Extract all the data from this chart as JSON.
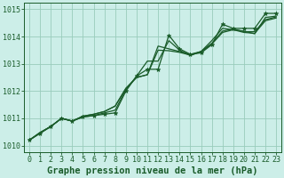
{
  "background_color": "#cceee8",
  "grid_color": "#99ccbb",
  "line_color": "#1a5c2a",
  "title": "Graphe pression niveau de la mer (hPa)",
  "ylim": [
    1009.75,
    1015.25
  ],
  "yticks": [
    1010,
    1011,
    1012,
    1013,
    1014,
    1015
  ],
  "xlim": [
    -0.5,
    23.5
  ],
  "xticks": [
    0,
    1,
    2,
    3,
    4,
    5,
    6,
    7,
    8,
    9,
    10,
    11,
    12,
    13,
    14,
    15,
    16,
    17,
    18,
    19,
    20,
    21,
    22,
    23
  ],
  "series": [
    [
      1010.2,
      1010.45,
      1010.7,
      1011.0,
      1010.9,
      1011.05,
      1011.1,
      1011.15,
      1011.2,
      1012.0,
      1012.55,
      1012.8,
      1012.8,
      1014.05,
      1013.55,
      1013.35,
      1013.4,
      1013.7,
      1014.45,
      1014.3,
      1014.3,
      1014.3,
      1014.85,
      1014.85
    ],
    [
      1010.2,
      1010.45,
      1010.7,
      1011.0,
      1010.9,
      1011.05,
      1011.1,
      1011.2,
      1011.3,
      1012.05,
      1012.55,
      1013.1,
      1013.1,
      1013.85,
      1013.5,
      1013.3,
      1013.45,
      1013.85,
      1014.3,
      1014.25,
      1014.2,
      1014.1,
      1014.7,
      1014.75
    ],
    [
      1010.2,
      1010.48,
      1010.7,
      1011.0,
      1010.9,
      1011.08,
      1011.15,
      1011.25,
      1011.45,
      1012.1,
      1012.5,
      1012.6,
      1013.65,
      1013.55,
      1013.45,
      1013.35,
      1013.45,
      1013.75,
      1014.2,
      1014.28,
      1014.18,
      1014.18,
      1014.62,
      1014.72
    ],
    [
      1010.2,
      1010.48,
      1010.7,
      1011.0,
      1010.9,
      1011.08,
      1011.15,
      1011.25,
      1011.45,
      1012.1,
      1012.5,
      1012.6,
      1013.5,
      1013.48,
      1013.42,
      1013.32,
      1013.45,
      1013.72,
      1014.15,
      1014.25,
      1014.15,
      1014.12,
      1014.58,
      1014.68
    ]
  ],
  "marker_series": 0,
  "marker": "*",
  "markersize": 3.5,
  "linewidth": 0.9,
  "title_fontsize": 7.5,
  "tick_fontsize": 6.0,
  "fig_width": 3.2,
  "fig_height": 2.0
}
